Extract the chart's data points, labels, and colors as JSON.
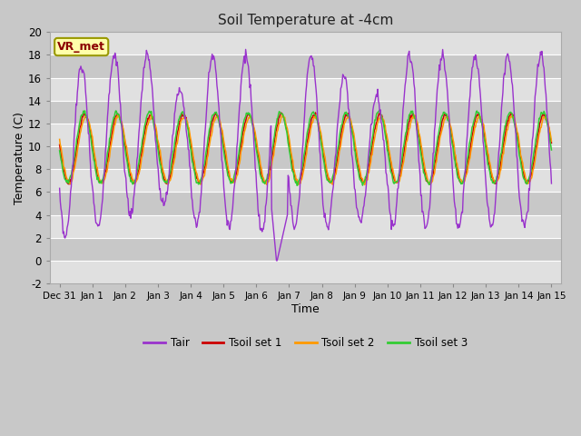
{
  "title": "Soil Temperature at -4cm",
  "xlabel": "Time",
  "ylabel": "Temperature (C)",
  "ylim": [
    -2,
    20
  ],
  "colors": {
    "Tair": "#9933cc",
    "Tsoil1": "#cc0000",
    "Tsoil2": "#ff9900",
    "Tsoil3": "#33cc33"
  },
  "legend_labels": [
    "Tair",
    "Tsoil set 1",
    "Tsoil set 2",
    "Tsoil set 3"
  ],
  "annotation_text": "VR_met",
  "annotation_color": "#8b0000",
  "annotation_bg": "#ffffaa",
  "tick_labels": [
    "Dec 31",
    "Jan 1",
    "Jan 2",
    "Jan 3",
    "Jan 4",
    "Jan 5",
    "Jan 6",
    "Jan 7",
    "Jan 8",
    "Jan 9",
    "Jan 10",
    "Jan 11",
    "Jan 12",
    "Jan 13",
    "Jan 14",
    "Jan 15"
  ],
  "tick_positions": [
    0,
    1,
    2,
    3,
    4,
    5,
    6,
    7,
    8,
    9,
    10,
    11,
    12,
    13,
    14,
    15
  ],
  "yticks": [
    -2,
    0,
    2,
    4,
    6,
    8,
    10,
    12,
    14,
    16,
    18,
    20
  ],
  "tair_amp": 8.0,
  "tair_mean": 10.5,
  "tsoil_amp": 3.0,
  "tsoil_mean": 9.8,
  "fig_bg": "#c8c8c8",
  "plot_bg": "#e0e0e0",
  "band_color": "#c8c8c8",
  "grid_color": "#ffffff"
}
